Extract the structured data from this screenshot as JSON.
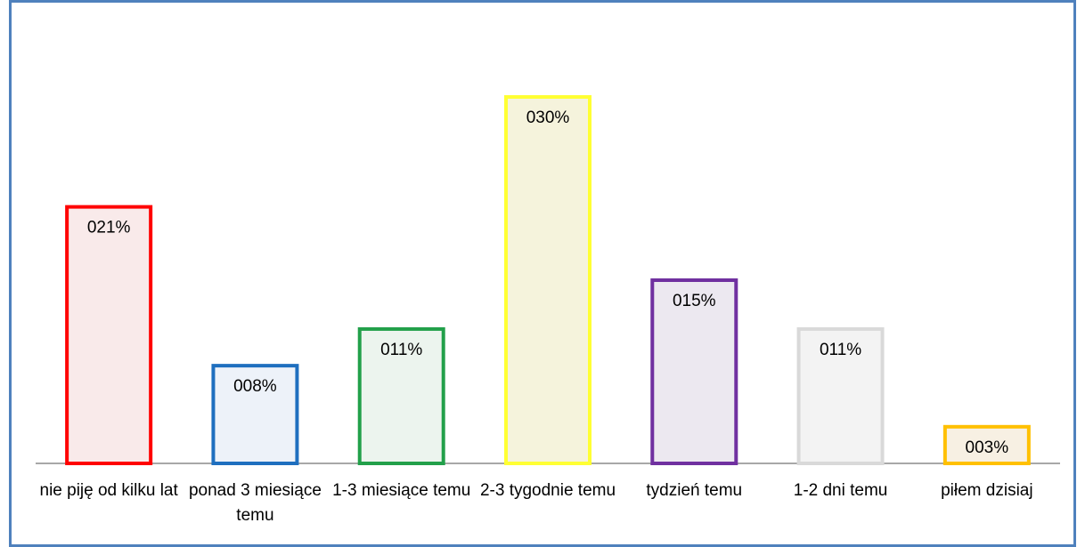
{
  "chart_data": {
    "type": "bar",
    "categories": [
      "nie piję od kilku lat",
      "ponad 3 miesiące temu",
      "1-3 miesiące temu",
      "2-3 tygodnie temu",
      "tydzień temu",
      "1-2 dni temu",
      "piłem dzisiaj"
    ],
    "values": [
      21,
      8,
      11,
      30,
      15,
      11,
      3
    ],
    "value_labels": [
      "021%",
      "008%",
      "011%",
      "030%",
      "015%",
      "011%",
      "003%"
    ],
    "colors": [
      "#ff0000",
      "#1f6fbf",
      "#22a04a",
      "#ffff33",
      "#7030a0",
      "#d9d9d9",
      "#ffc000"
    ],
    "fill_colors": [
      "#f9eaea",
      "#edf2f9",
      "#ecf4ee",
      "#f5f3dc",
      "#ece8f0",
      "#f3f3f3",
      "#f7f0e3"
    ]
  }
}
